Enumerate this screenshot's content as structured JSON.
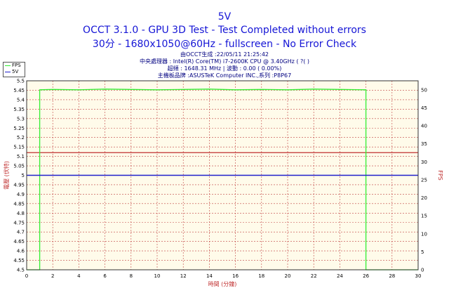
{
  "header": {
    "title": "5V",
    "subtitle_1": "OCCT 3.1.0 - GPU 3D Test - Test Completed without errors",
    "subtitle_2": "30分 - 1680x1050@60Hz - fullscreen - No Error Check"
  },
  "info": {
    "line1": "由OCCT生成 :22/05/11 21:25:42",
    "line2": "中央處理器 : Intel(R) Core(TM) i7-2600K CPU @ 3.40GHz (  ?( )",
    "line3": "超頻 : 1648.31 MHz | 波動 : 0.00 ( 0.00%)",
    "line4": "主機板品牌 :ASUSTeK Computer INC.,系列 :P8P67"
  },
  "legend": {
    "fps": "FPS",
    "v5": "5V"
  },
  "colors": {
    "title": "#1515d6",
    "info": "#000080",
    "plot_bg": "#fffbea",
    "grid": "#c04040",
    "fps_line": "#33ee33",
    "v5_line": "#2020cc",
    "ref_line": "#c03030",
    "axis_label": "#c03030"
  },
  "chart_data": {
    "type": "line",
    "xlabel": "時間 (分鐘)",
    "ylabel": "電壓 (伏特)",
    "y2label": "FPS",
    "xlim": [
      0,
      30
    ],
    "ylim": [
      4.5,
      5.5
    ],
    "y2lim": [
      0,
      52.5
    ],
    "x_ticks": [
      0,
      2,
      4,
      6,
      8,
      10,
      12,
      14,
      16,
      18,
      20,
      22,
      24,
      26,
      28,
      30
    ],
    "y_ticks": [
      "4.5",
      "4.55",
      "4.6",
      "4.65",
      "4.7",
      "4.75",
      "4.8",
      "4.85",
      "4.9",
      "4.95",
      "5",
      "5.05",
      "5.1",
      "5.15",
      "5.2",
      "5.25",
      "5.3",
      "5.35",
      "5.4",
      "5.45",
      "5.5"
    ],
    "y2_ticks": [
      0,
      5,
      10,
      15,
      20,
      25,
      30,
      35,
      40,
      45,
      50
    ],
    "grid": true,
    "legend_position": "top-left",
    "reference_line": 5.12,
    "series": [
      {
        "name": "FPS",
        "axis": "right",
        "x": [
          0,
          1,
          1,
          2,
          4,
          6,
          8,
          10,
          12,
          14,
          16,
          18,
          20,
          22,
          24,
          26,
          26,
          30
        ],
        "values": [
          0,
          0,
          50,
          50.1,
          50,
          50.2,
          50.1,
          50,
          50.1,
          50.2,
          50,
          50.1,
          50,
          50.2,
          50.1,
          50,
          0,
          0
        ]
      },
      {
        "name": "5V",
        "axis": "left",
        "x": [
          0,
          30
        ],
        "values": [
          5.0,
          5.0
        ]
      }
    ]
  }
}
